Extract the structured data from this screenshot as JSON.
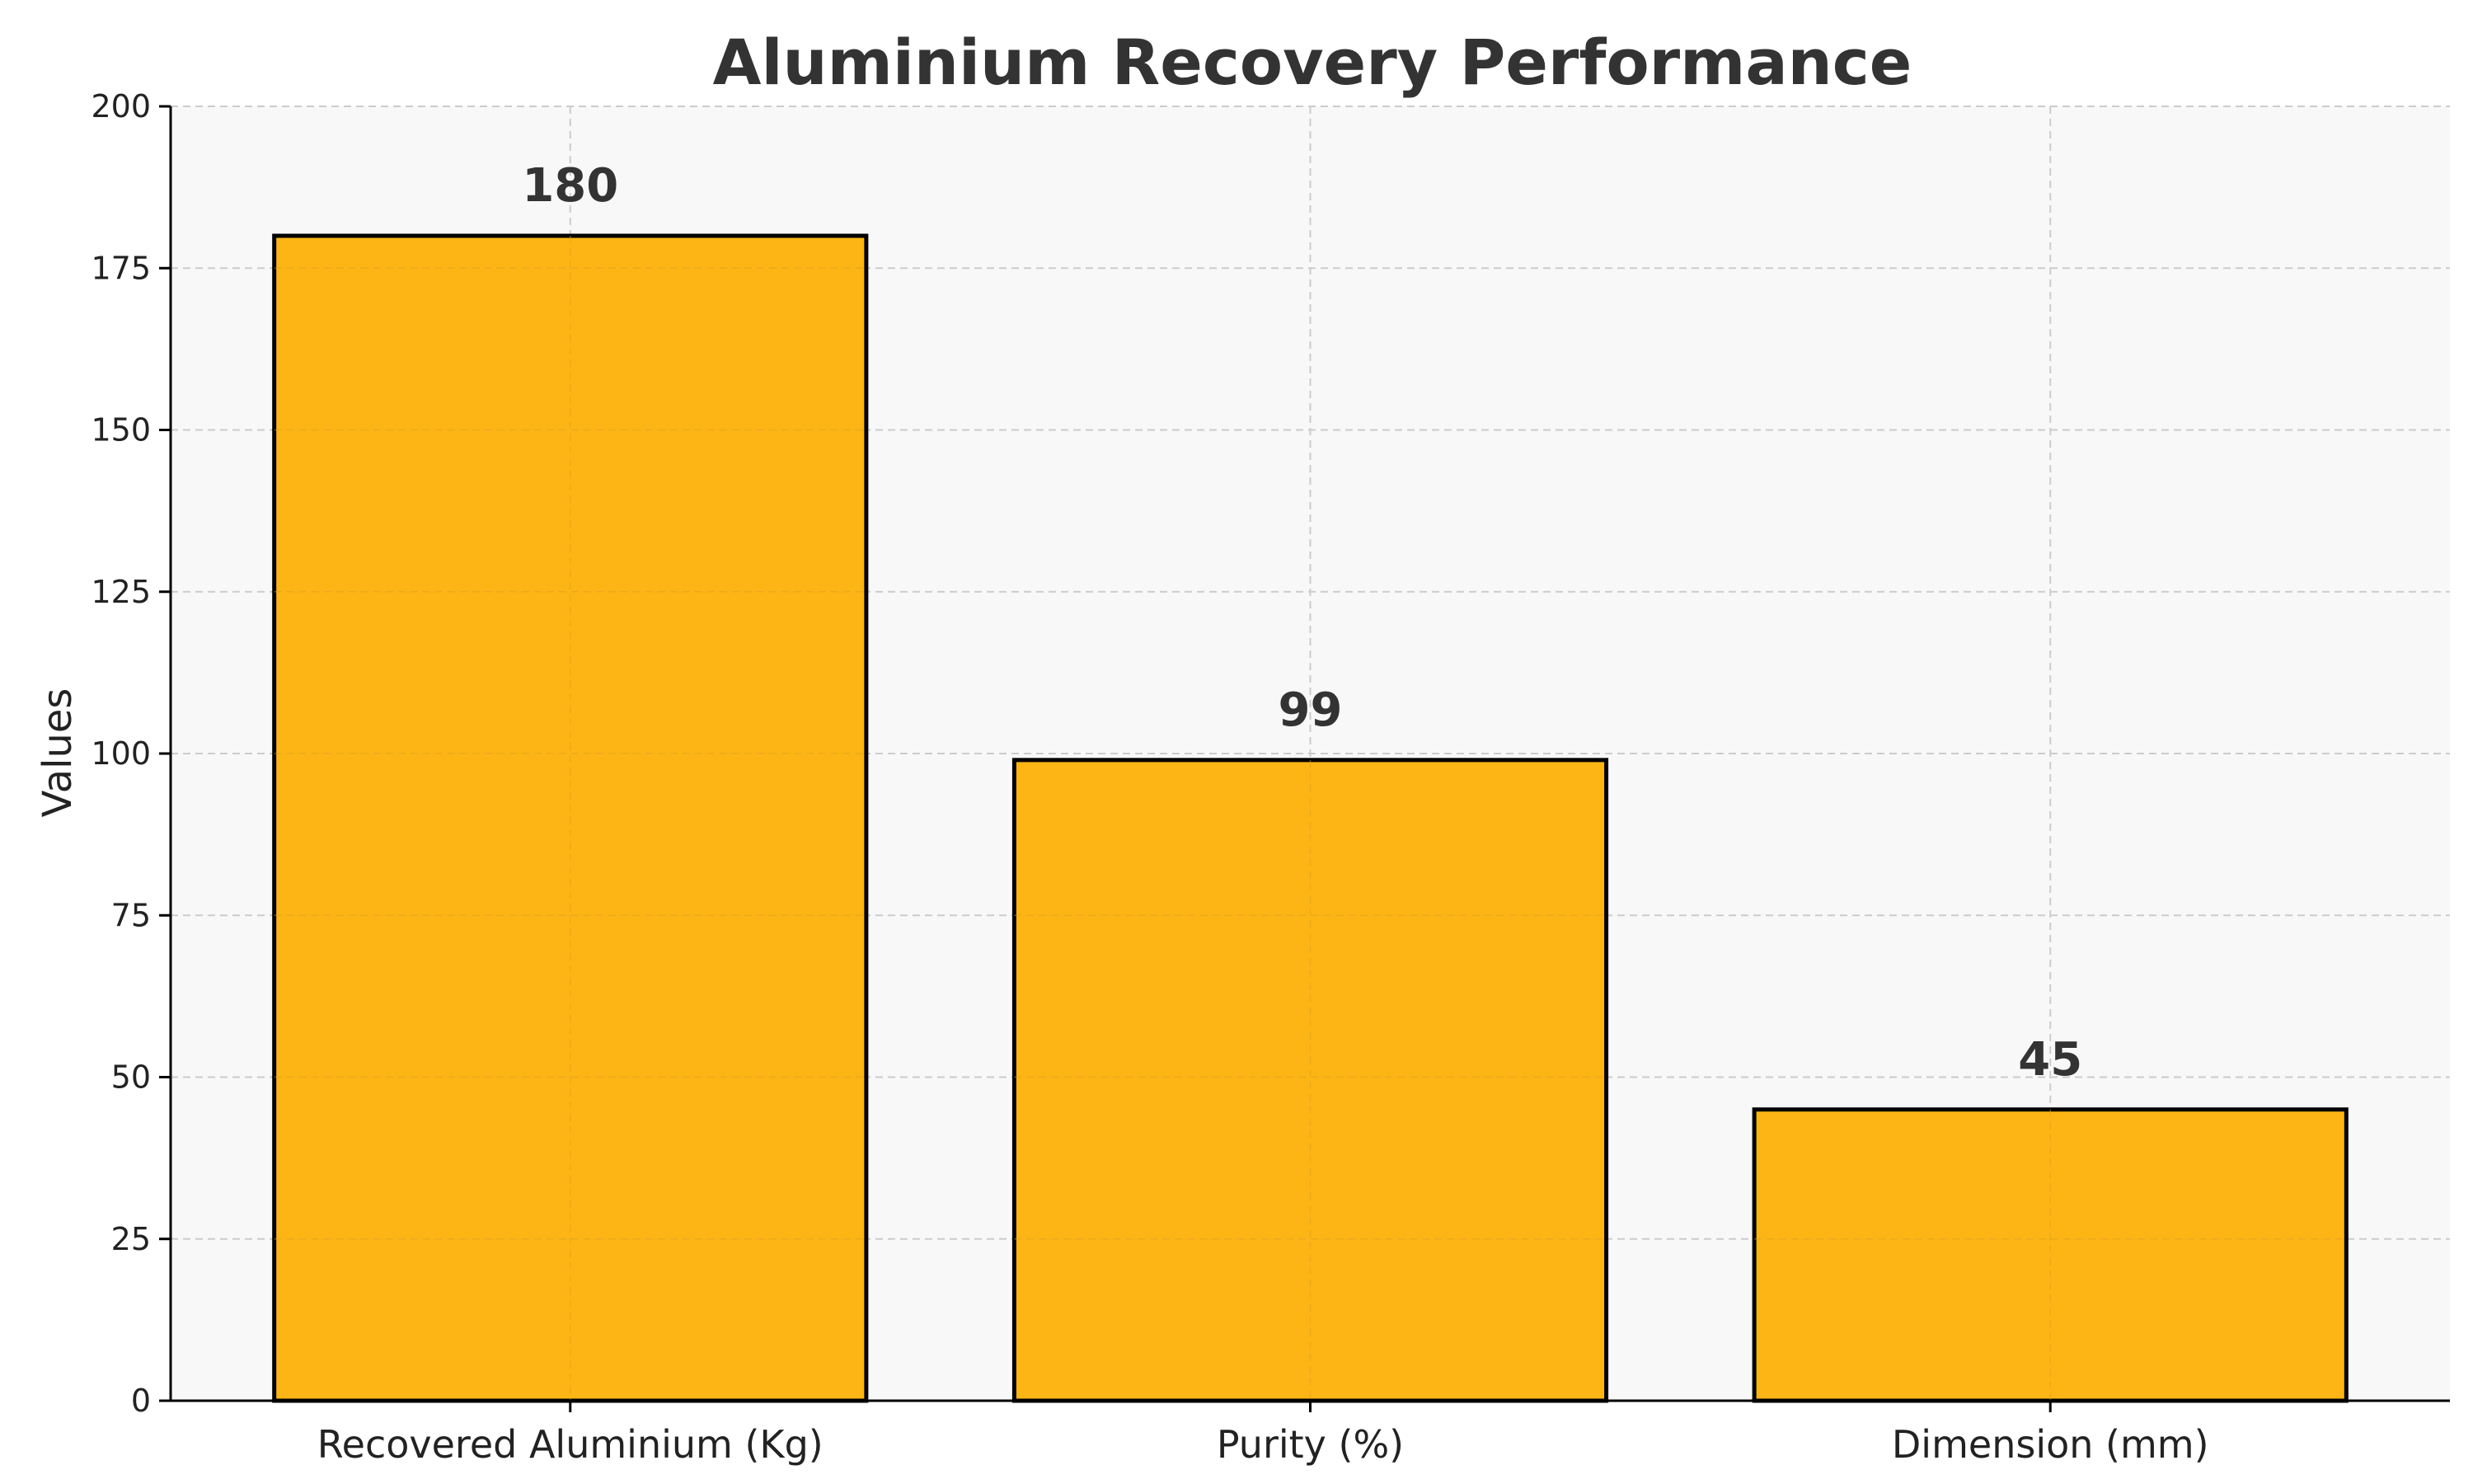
{
  "chart_data": {
    "type": "bar",
    "title": "Aluminium Recovery Performance",
    "xlabel": "",
    "ylabel": "Values",
    "categories": [
      "Recovered Aluminium (Kg)",
      "Purity (%)",
      "Dimension (mm)"
    ],
    "values": [
      180,
      99,
      45
    ],
    "data_labels": [
      "180",
      "99",
      "45"
    ],
    "ylim": [
      0,
      200
    ],
    "yticks": [
      0,
      25,
      50,
      75,
      100,
      125,
      150,
      175,
      200
    ],
    "ytick_labels": [
      "0",
      "25",
      "50",
      "75",
      "100",
      "125",
      "150",
      "175",
      "200"
    ],
    "grid": true,
    "grid_style": "dashed",
    "legend": "none",
    "colors": {
      "bar_fill": "#FDB515",
      "bar_edge": "#000000",
      "plot_background": "#F8F8F8",
      "grid": "#CCCCCC",
      "text": "#333333"
    }
  }
}
